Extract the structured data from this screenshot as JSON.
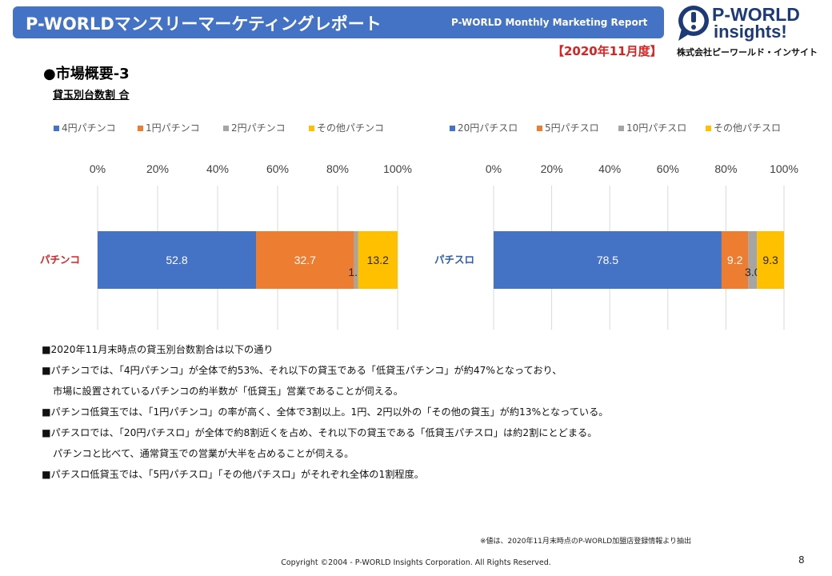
{
  "header": {
    "title": "P-WORLDマンスリーマーケティングレポート",
    "subtitle": "P-WORLD Monthly Marketing Report"
  },
  "logo": {
    "line1": "P-WORLD",
    "line2": "insights!"
  },
  "period": "【2020年11月度】",
  "company": "株式会社ピーワールド・インサイト",
  "section": {
    "title": "●市場概要-3",
    "subtitle": "貸玉別台数割 合"
  },
  "colors": {
    "blue": "#4472c4",
    "orange": "#ed7d31",
    "gray": "#a5a5a5",
    "yellow": "#ffc000",
    "header": "#4472c4",
    "accent_red": "#e01f1f"
  },
  "chart_data": [
    {
      "type": "bar",
      "orientation": "horizontal",
      "stacked": "percent",
      "categories": [
        "パチンコ"
      ],
      "series": [
        {
          "name": "4円パチンコ",
          "values": [
            52.8
          ],
          "color": "#4472c4"
        },
        {
          "name": "1円パチンコ",
          "values": [
            32.7
          ],
          "color": "#ed7d31"
        },
        {
          "name": "2円パチンコ",
          "values": [
            1.3
          ],
          "color": "#a5a5a5"
        },
        {
          "name": "その他パチンコ",
          "values": [
            13.2
          ],
          "color": "#ffc000"
        }
      ],
      "xlim": [
        0,
        100
      ],
      "xticks": [
        "0%",
        "20%",
        "40%",
        "60%",
        "80%",
        "100%"
      ],
      "legend": "top",
      "grid": true
    },
    {
      "type": "bar",
      "orientation": "horizontal",
      "stacked": "percent",
      "categories": [
        "パチスロ"
      ],
      "series": [
        {
          "name": "20円パチスロ",
          "values": [
            78.5
          ],
          "color": "#4472c4"
        },
        {
          "name": "5円パチスロ",
          "values": [
            9.2
          ],
          "color": "#ed7d31"
        },
        {
          "name": "10円パチスロ",
          "values": [
            3.0
          ],
          "color": "#a5a5a5"
        },
        {
          "name": "その他パチスロ",
          "values": [
            9.3
          ],
          "color": "#ffc000"
        }
      ],
      "xlim": [
        0,
        100
      ],
      "xticks": [
        "0%",
        "20%",
        "40%",
        "60%",
        "80%",
        "100%"
      ],
      "legend": "top",
      "grid": true
    }
  ],
  "notes": [
    {
      "text": "■2020年11月末時点の貸玉別台数割合は以下の通り",
      "indent": false
    },
    {
      "text": "■パチンコでは、「4円パチンコ」が全体で約53%、それ以下の貸玉である「低貸玉パチンコ」が約47%となっており、",
      "indent": false
    },
    {
      "text": "市場に設置されているパチンコの約半数が「低貸玉」営業であることが伺える。",
      "indent": true
    },
    {
      "text": "■パチンコ低貸玉では、「1円パチンコ」の率が高く、全体で3割以上。1円、2円以外の「その他の貸玉」が約13%となっている。",
      "indent": false
    },
    {
      "text": "■パチスロでは、「20円パチスロ」が全体で約8割近くを占め、それ以下の貸玉である「低貸玉パチスロ」は約2割にとどまる。",
      "indent": false
    },
    {
      "text": "パチンコと比べて、通常貸玉での営業が大半を占めることが伺える。",
      "indent": true
    },
    {
      "text": "■パチスロ低貸玉では、「5円パチスロ」「その他パチスロ」がそれぞれ全体の1割程度。",
      "indent": false
    }
  ],
  "footer": {
    "source": "※値は、2020年11月末時点のP-WORLD加盟店登録情報より抽出",
    "copyright": "Copyright ©2004 -  P-WORLD Insights Corporation. All Rights Reserved.",
    "page": "8"
  }
}
